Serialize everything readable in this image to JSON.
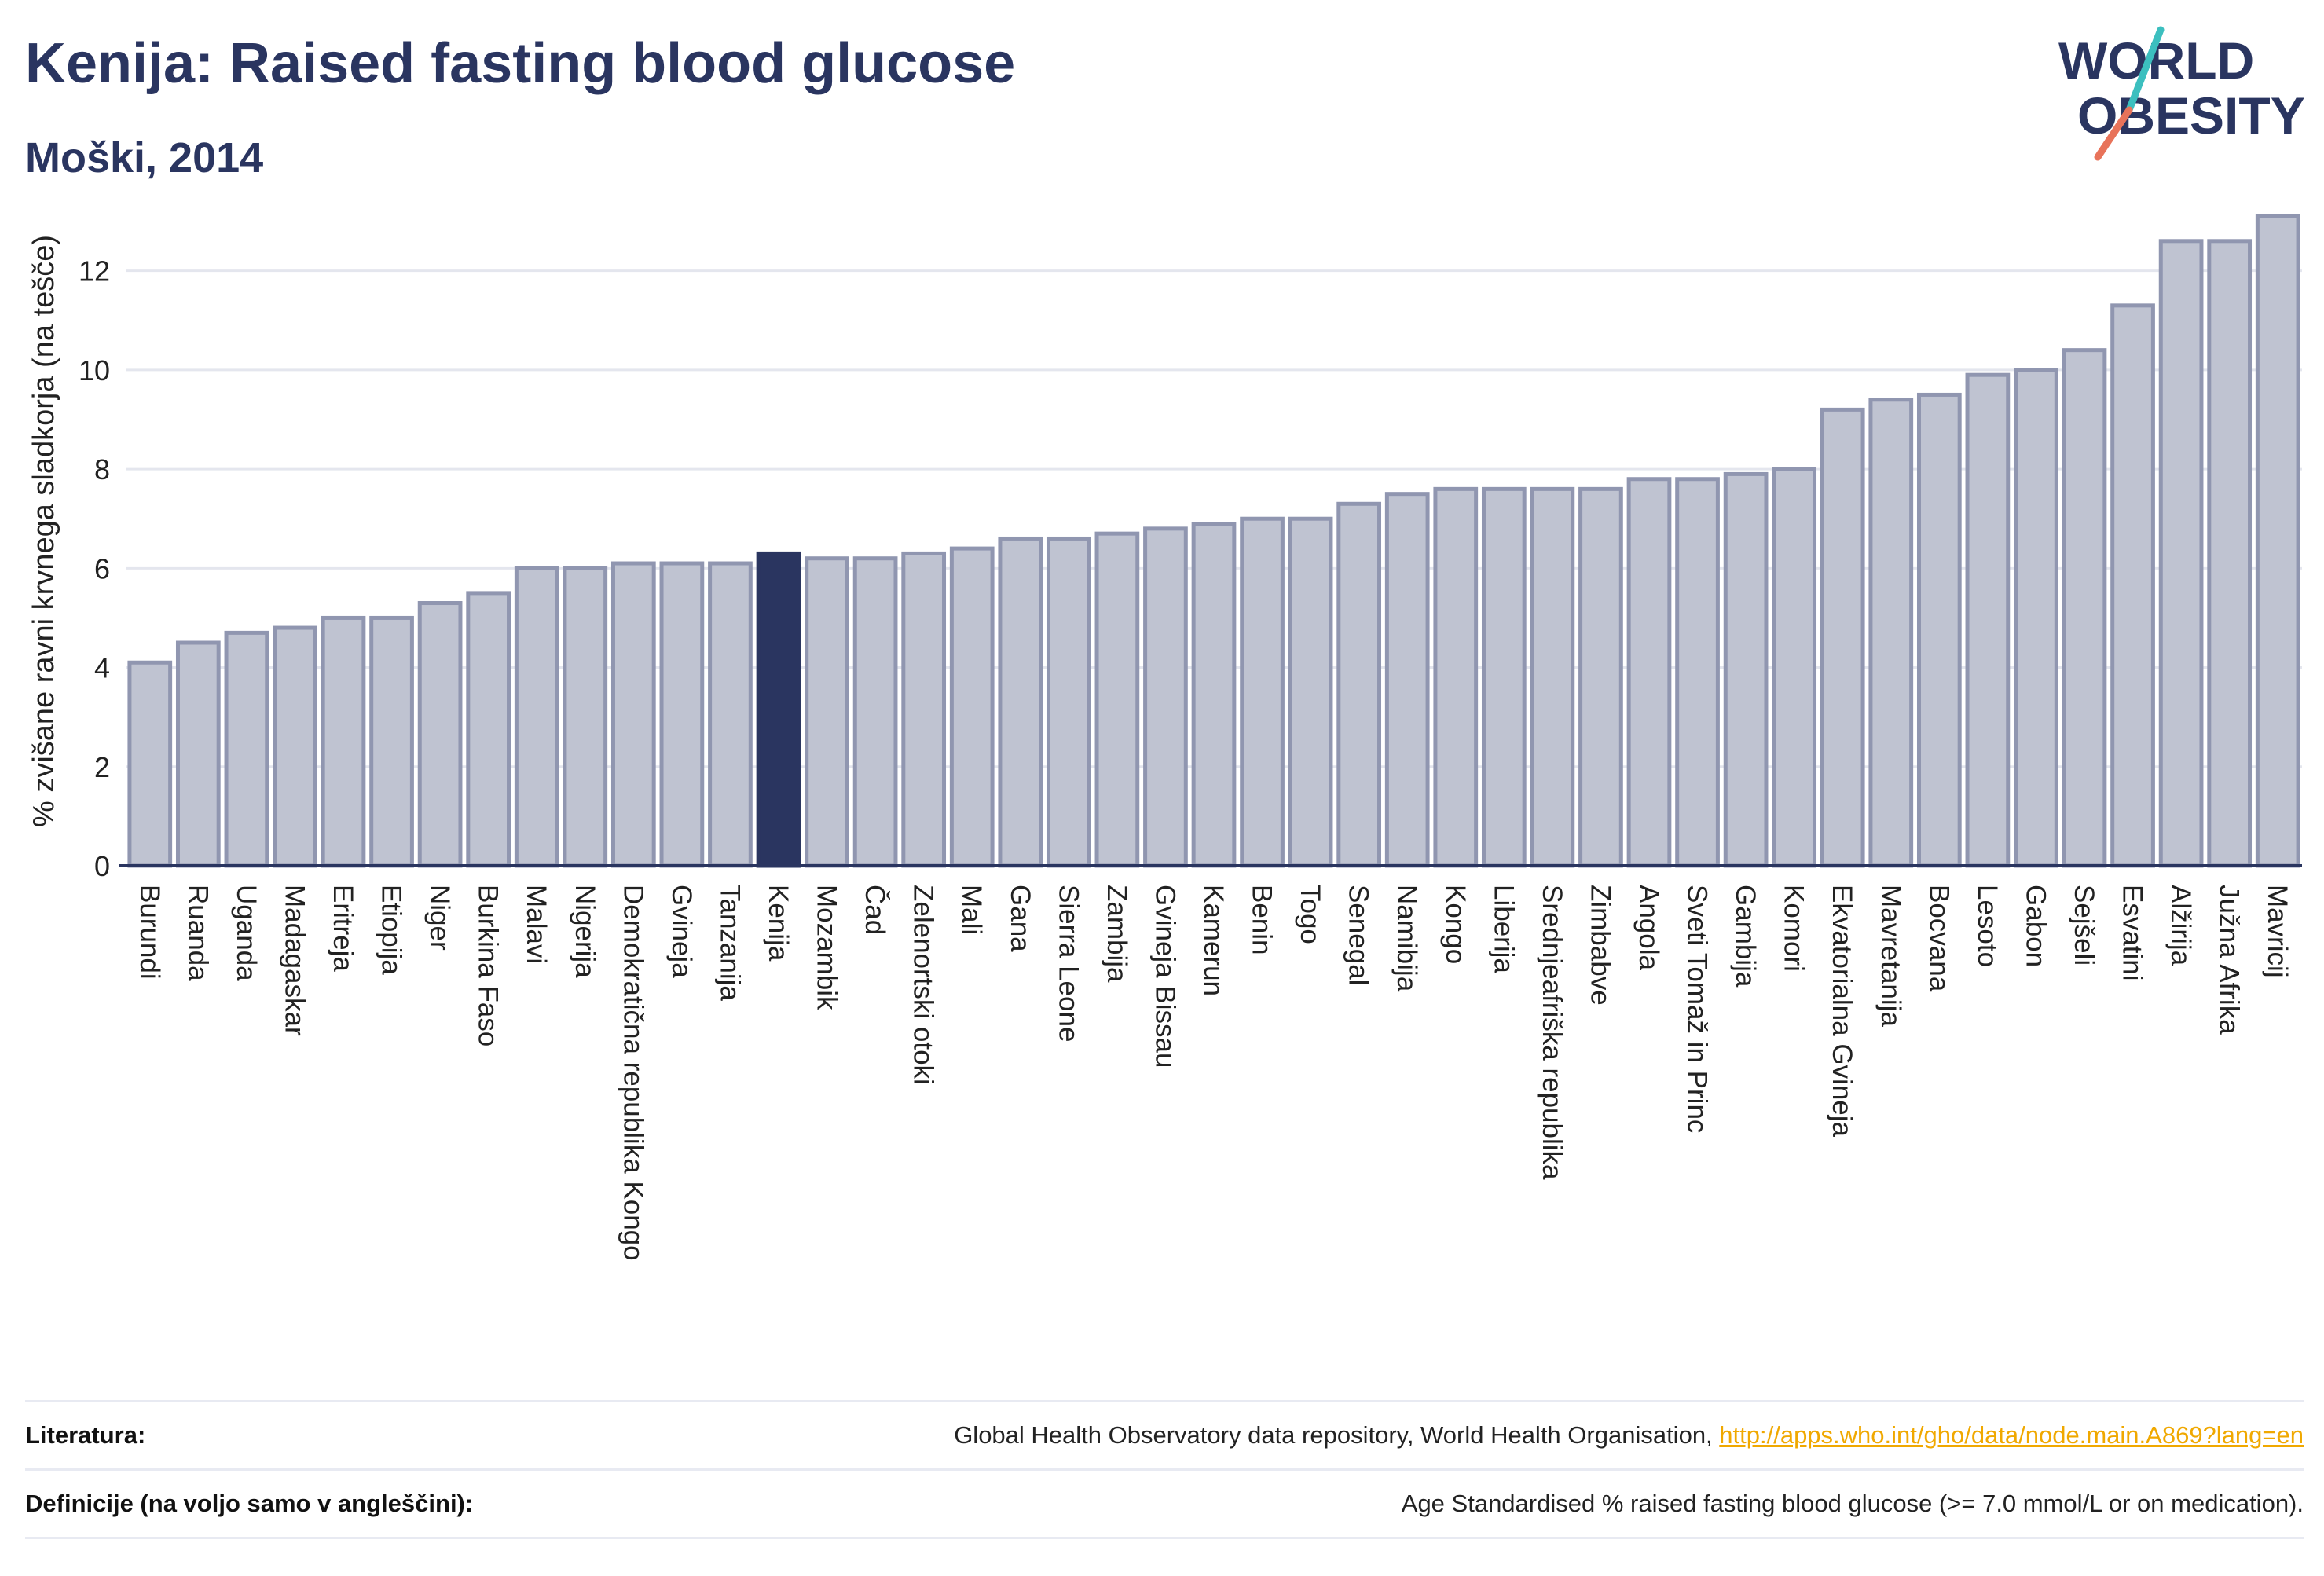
{
  "header": {
    "title": "Kenija: Raised fasting blood glucose",
    "subtitle": "Moški, 2014"
  },
  "logo": {
    "line1": "WORLD",
    "line2": "OBESITY"
  },
  "footer": {
    "rows": [
      {
        "label": "Literatura:",
        "text": "Global Health Observatory data repository, World Health Organisation, ",
        "link": "http://apps.who.int/gho/data/node.main.A869?lang=en"
      },
      {
        "label": "Definicije (na voljo samo v angleščini):",
        "text": "Age Standardised % raised fasting blood glucose (>= 7.0 mmol/L or on medication).",
        "link": ""
      }
    ]
  },
  "colors": {
    "bar": "#bfc3d1",
    "bar_stroke": "#9096b0",
    "highlight": "#2a3560",
    "title": "#2a3560",
    "logo_accent_teal": "#3cbfbf",
    "logo_accent_coral": "#e8735a"
  },
  "chart_data": {
    "type": "bar",
    "title": "Kenija: Raised fasting blood glucose",
    "subtitle": "Moški, 2014",
    "xlabel": "",
    "ylabel": "% zvišane ravni krvnega sladkorja (na tešče)",
    "ylim": [
      0,
      13.5
    ],
    "yticks": [
      0,
      2,
      4,
      6,
      8,
      10,
      12
    ],
    "grid": true,
    "highlight": "Kenija",
    "categories": [
      "Burundi",
      "Ruanda",
      "Uganda",
      "Madagaskar",
      "Eritreja",
      "Etiopija",
      "Niger",
      "Burkina Faso",
      "Malavi",
      "Nigerija",
      "Demokratična republika Kongo",
      "Gvineja",
      "Tanzanija",
      "Kenija",
      "Mozambik",
      "Čad",
      "Zelenortski otoki",
      "Mali",
      "Gana",
      "Sierra Leone",
      "Zambija",
      "Gvineja Bissau",
      "Kamerun",
      "Benin",
      "Togo",
      "Senegal",
      "Namibija",
      "Kongo",
      "Liberija",
      "Srednjeafriška republika",
      "Zimbabve",
      "Angola",
      "Sveti Tomaž in Princ",
      "Gambija",
      "Komori",
      "Ekvatorialna Gvineja",
      "Mavretanija",
      "Bocvana",
      "Lesoto",
      "Gabon",
      "Sejšeli",
      "Esvatini",
      "Alžirija",
      "Južna Afrika",
      "Mavricij"
    ],
    "values": [
      4.1,
      4.5,
      4.7,
      4.8,
      5.0,
      5.0,
      5.3,
      5.5,
      6.0,
      6.0,
      6.1,
      6.1,
      6.1,
      6.3,
      6.2,
      6.2,
      6.3,
      6.4,
      6.6,
      6.6,
      6.7,
      6.8,
      6.9,
      7.0,
      7.0,
      7.3,
      7.5,
      7.6,
      7.6,
      7.6,
      7.6,
      7.8,
      7.8,
      7.9,
      8.0,
      9.2,
      9.4,
      9.5,
      9.9,
      10.0,
      10.4,
      11.3,
      12.6,
      12.6,
      13.1
    ]
  }
}
